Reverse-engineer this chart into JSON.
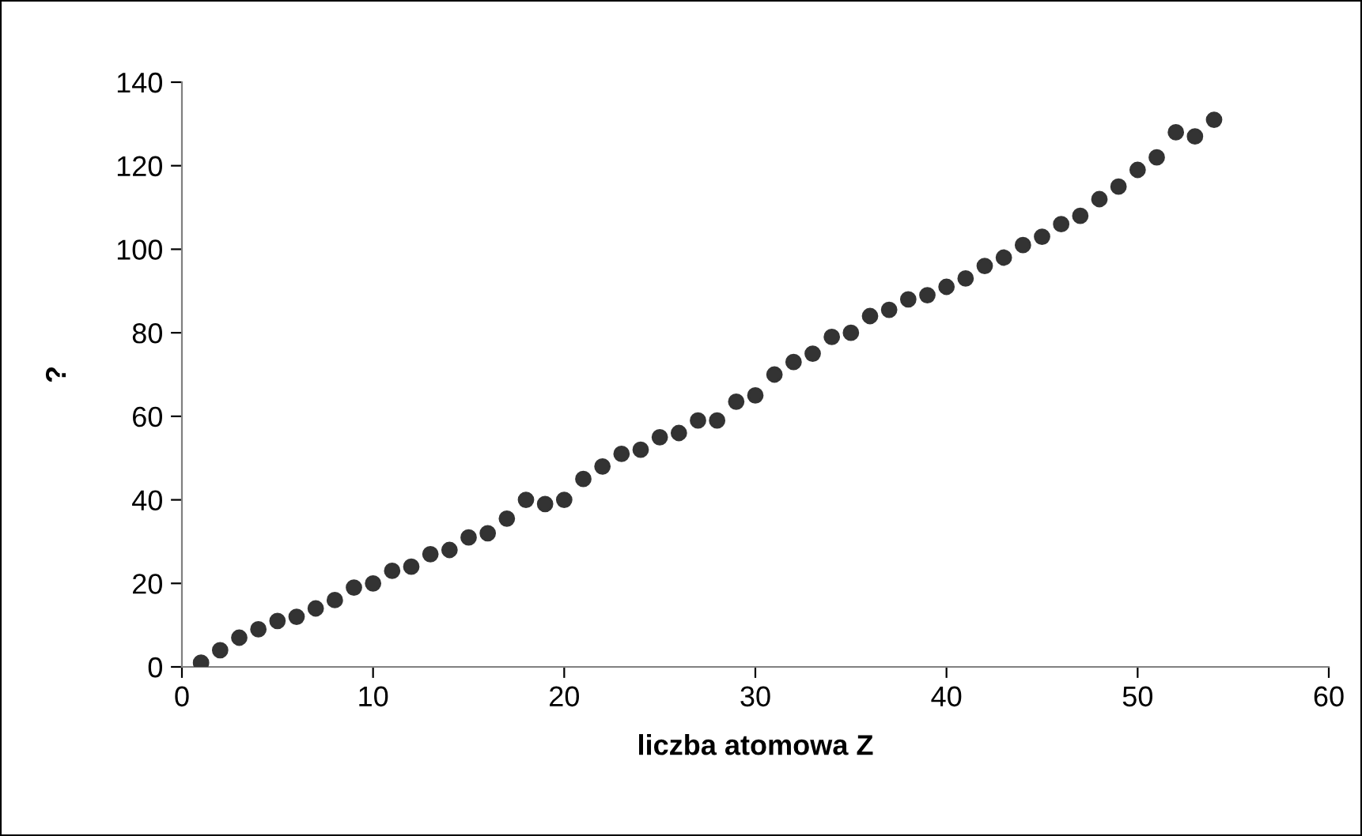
{
  "chart_data": {
    "type": "scatter",
    "xlabel": "liczba atomowa Z",
    "ylabel": "?",
    "x": [
      1,
      2,
      3,
      4,
      5,
      6,
      7,
      8,
      9,
      10,
      11,
      12,
      13,
      14,
      15,
      16,
      17,
      18,
      19,
      20,
      21,
      22,
      23,
      24,
      25,
      26,
      27,
      28,
      29,
      30,
      31,
      32,
      33,
      34,
      35,
      36,
      37,
      38,
      39,
      40,
      41,
      42,
      43,
      44,
      45,
      46,
      47,
      48,
      49,
      50,
      51,
      52,
      53,
      54
    ],
    "series": [
      {
        "color": "#333333",
        "values": [
          1,
          4,
          7,
          9,
          11,
          12,
          14,
          16,
          19,
          20,
          23,
          24,
          27,
          28,
          31,
          32,
          35.5,
          40,
          39,
          40,
          45,
          48,
          51,
          52,
          55,
          56,
          59,
          59,
          63.5,
          65,
          70,
          73,
          75,
          79,
          80,
          84,
          85.5,
          88,
          89,
          91,
          93,
          96,
          98,
          101,
          103,
          106,
          108,
          112,
          115,
          119,
          122,
          128,
          127,
          131
        ]
      }
    ],
    "xlim": [
      0,
      60
    ],
    "xticks": [
      0,
      10,
      20,
      30,
      40,
      50,
      60
    ],
    "ylim": [
      0,
      140
    ],
    "yticks": [
      0,
      20,
      40,
      60,
      80,
      100,
      120,
      140
    ],
    "marker": "circle",
    "grid": false,
    "legend": false
  }
}
